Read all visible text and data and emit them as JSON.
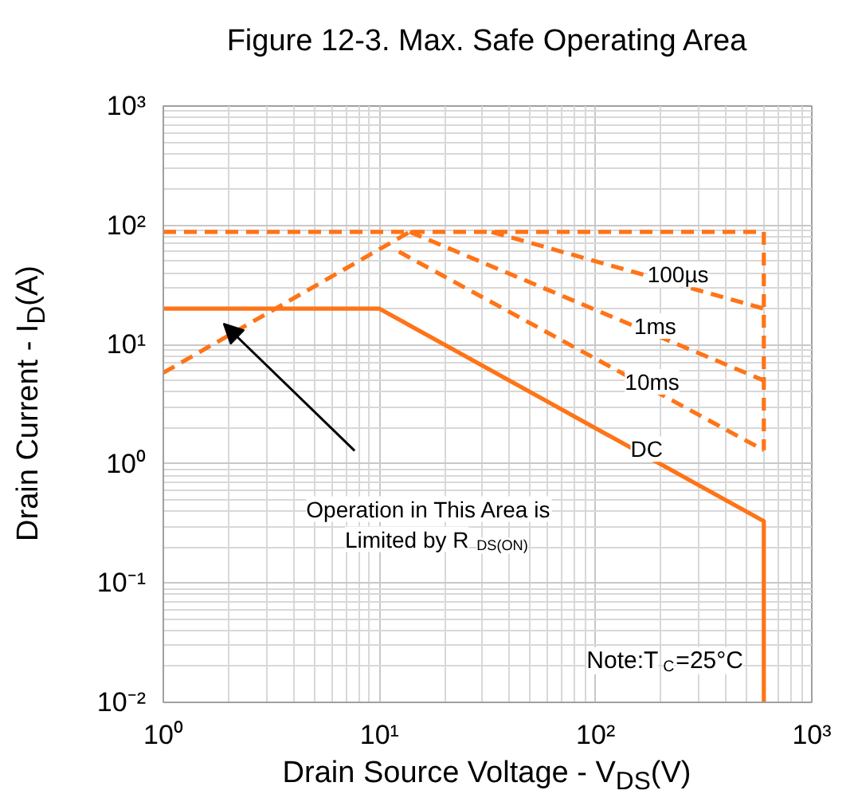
{
  "chart_data": {
    "type": "line",
    "title": "Figure 12-3. Max. Safe Operating Area",
    "xlabel": "Drain Source Voltage - V$_{DS}$(V)",
    "ylabel": "Drain Current - I$_{D}$(A)",
    "log": "xy",
    "grid": true,
    "xlim": [
      1,
      1000
    ],
    "ylim": [
      0.01,
      1000
    ],
    "xticks": [
      {
        "value": 1,
        "label": "10⁰"
      },
      {
        "value": 10,
        "label": "10¹"
      },
      {
        "value": 100,
        "label": "10²"
      },
      {
        "value": 1000,
        "label": "10³"
      }
    ],
    "yticks": [
      {
        "value": 0.01,
        "label": "10⁻²"
      },
      {
        "value": 0.1,
        "label": "10⁻¹"
      },
      {
        "value": 1,
        "label": "10⁰"
      },
      {
        "value": 10,
        "label": "10¹"
      },
      {
        "value": 100,
        "label": "10²"
      },
      {
        "value": 1000,
        "label": "10³"
      }
    ],
    "series": [
      {
        "color": "#ff7417",
        "line_style": "dashed",
        "x": [
          1,
          600,
          600
        ],
        "values": [
          88,
          88,
          1.3
        ]
      },
      {
        "color": "#ff7417",
        "line_style": "dashed",
        "x": [
          1,
          13.8
        ],
        "values": [
          5.8,
          88
        ]
      },
      {
        "name": "100µs",
        "color": "#ff7417",
        "line_style": "dashed",
        "x": [
          33,
          600
        ],
        "values": [
          88,
          20
        ]
      },
      {
        "name": "1ms",
        "color": "#ff7417",
        "line_style": "dashed",
        "x": [
          13.8,
          600
        ],
        "values": [
          88,
          5
        ]
      },
      {
        "name": "10ms",
        "color": "#ff7417",
        "line_style": "dashed",
        "x": [
          12.3,
          600
        ],
        "values": [
          60,
          1.3
        ]
      },
      {
        "name": "DC",
        "color": "#ff7417",
        "line_style": "solid",
        "x": [
          1,
          10,
          600,
          600
        ],
        "values": [
          20,
          20,
          0.33,
          0.01
        ]
      }
    ],
    "annotations": [
      "Operation in This Area is Limited by R$_{DS(ON)}$",
      "Note:T$_{C}$=25°C"
    ]
  }
}
